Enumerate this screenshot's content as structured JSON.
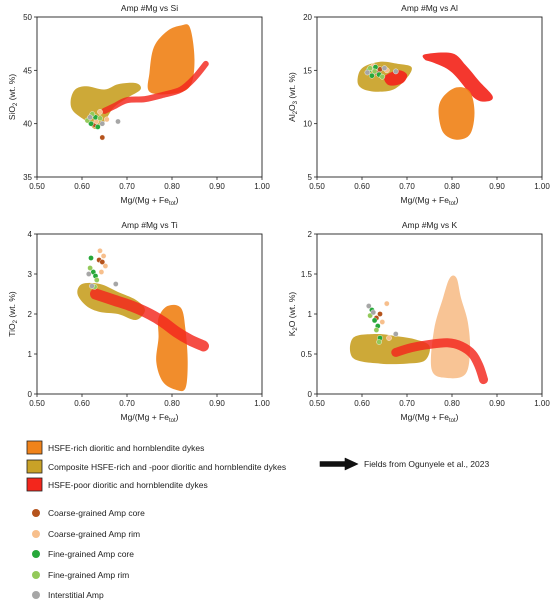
{
  "chart_data": [
    {
      "type": "scatter",
      "title": "Amp #Mg vs Si",
      "xlabel": "Mg/(Mg + Fe",
      "xlabel_sub": "tot",
      "xlabel_end": ")",
      "ylabel": "SiO",
      "ylabel_sub": "2",
      "ylabel_end": " (wt. %)",
      "xlim": [
        0.5,
        1.0
      ],
      "ylim": [
        35,
        50
      ],
      "xticks": [
        "0.50",
        "0.60",
        "0.70",
        "0.80",
        "0.90",
        "1.00"
      ],
      "yticks": [
        "35",
        "40",
        "45",
        "50"
      ],
      "fields": [
        {
          "name": "Composite",
          "color": "#c9a227",
          "points": [
            [
              0.58,
              41.2
            ],
            [
              0.575,
              42.2
            ],
            [
              0.585,
              43.2
            ],
            [
              0.61,
              43.5
            ],
            [
              0.65,
              43.2
            ],
            [
              0.68,
              43.7
            ],
            [
              0.72,
              43.8
            ],
            [
              0.73,
              43.2
            ],
            [
              0.7,
              42.4
            ],
            [
              0.67,
              41.5
            ],
            [
              0.65,
              40.2
            ],
            [
              0.63,
              39.5
            ],
            [
              0.61,
              40.2
            ]
          ]
        },
        {
          "name": "HSFE-rich",
          "color": "#f0831a",
          "points": [
            [
              0.75,
              43.0
            ],
            [
              0.75,
              44.8
            ],
            [
              0.76,
              47.2
            ],
            [
              0.79,
              48.7
            ],
            [
              0.82,
              49.2
            ],
            [
              0.84,
              49.0
            ],
            [
              0.85,
              46.0
            ],
            [
              0.84,
              43.5
            ],
            [
              0.8,
              42.8
            ]
          ]
        },
        {
          "name": "HSFE-poor",
          "color": "#f3261c",
          "band": true,
          "width": 6,
          "points": [
            [
              0.65,
              41.2
            ],
            [
              0.67,
              41.6
            ],
            [
              0.7,
              42.2
            ],
            [
              0.74,
              42.3
            ],
            [
              0.78,
              42.7
            ],
            [
              0.82,
              43.2
            ],
            [
              0.85,
              44.3
            ],
            [
              0.875,
              45.6
            ]
          ]
        }
      ],
      "points": [
        {
          "group": "Coarse-grained Amp core",
          "x": 0.645,
          "y": 38.7
        },
        {
          "group": "Coarse-grained Amp core",
          "x": 0.628,
          "y": 39.9
        },
        {
          "group": "Coarse-grained Amp rim",
          "x": 0.632,
          "y": 40.2
        },
        {
          "group": "Coarse-grained Amp rim",
          "x": 0.655,
          "y": 40.4
        },
        {
          "group": "Coarse-grained Amp rim",
          "x": 0.64,
          "y": 41.1
        },
        {
          "group": "Fine-grained Amp core",
          "x": 0.62,
          "y": 40.0
        },
        {
          "group": "Fine-grained Amp core",
          "x": 0.63,
          "y": 40.6
        },
        {
          "group": "Fine-grained Amp core",
          "x": 0.635,
          "y": 39.7
        },
        {
          "group": "Fine-grained Amp rim",
          "x": 0.612,
          "y": 40.3
        },
        {
          "group": "Fine-grained Amp rim",
          "x": 0.623,
          "y": 40.9
        },
        {
          "group": "Fine-grained Amp rim",
          "x": 0.64,
          "y": 40.5
        },
        {
          "group": "Interstitial Amp",
          "x": 0.618,
          "y": 40.6
        },
        {
          "group": "Interstitial Amp",
          "x": 0.645,
          "y": 40.0
        },
        {
          "group": "Interstitial Amp",
          "x": 0.68,
          "y": 40.2
        }
      ]
    },
    {
      "type": "scatter",
      "title": "Amp #Mg vs Al",
      "xlabel": "Mg/(Mg + Fe",
      "xlabel_sub": "tot",
      "xlabel_end": ")",
      "ylabel": "Al",
      "ylabel_sub": "2",
      "ylabel_mid": "O",
      "ylabel_sub2": "3",
      "ylabel_end": " (wt. %)",
      "xlim": [
        0.5,
        1.0
      ],
      "ylim": [
        5,
        20
      ],
      "xticks": [
        "0.50",
        "0.60",
        "0.70",
        "0.80",
        "0.90",
        "1.00"
      ],
      "yticks": [
        "5",
        "10",
        "15",
        "20"
      ],
      "fields": [
        {
          "name": "Composite",
          "color": "#c9a227",
          "points": [
            [
              0.59,
              14.0
            ],
            [
              0.6,
              15.2
            ],
            [
              0.64,
              15.8
            ],
            [
              0.68,
              15.6
            ],
            [
              0.71,
              15.3
            ],
            [
              0.7,
              14.3
            ],
            [
              0.67,
              13.2
            ],
            [
              0.63,
              13.0
            ],
            [
              0.6,
              13.3
            ]
          ]
        },
        {
          "name": "HSFE-poor",
          "color": "#f3261c",
          "points": [
            [
              0.74,
              16.5
            ],
            [
              0.8,
              16.6
            ],
            [
              0.83,
              15.5
            ],
            [
              0.86,
              14.0
            ],
            [
              0.89,
              12.6
            ],
            [
              0.88,
              12.1
            ],
            [
              0.85,
              12.4
            ],
            [
              0.8,
              14.8
            ],
            [
              0.76,
              15.7
            ],
            [
              0.74,
              16.0
            ]
          ]
        },
        {
          "name": "HSFE-poor",
          "color": "#f3261c",
          "points": [
            [
              0.65,
              14.4
            ],
            [
              0.68,
              15.0
            ],
            [
              0.7,
              14.6
            ],
            [
              0.69,
              13.8
            ],
            [
              0.66,
              13.6
            ]
          ]
        },
        {
          "name": "HSFE-rich",
          "color": "#f0831a",
          "points": [
            [
              0.78,
              12.5
            ],
            [
              0.81,
              13.4
            ],
            [
              0.84,
              13.0
            ],
            [
              0.85,
              11.0
            ],
            [
              0.84,
              9.0
            ],
            [
              0.81,
              8.5
            ],
            [
              0.78,
              9.2
            ],
            [
              0.77,
              11.2
            ]
          ]
        }
      ],
      "points": [
        {
          "group": "Coarse-grained Amp core",
          "x": 0.632,
          "y": 14.8
        },
        {
          "group": "Coarse-grained Amp core",
          "x": 0.64,
          "y": 15.1
        },
        {
          "group": "Coarse-grained Amp rim",
          "x": 0.625,
          "y": 15.4
        },
        {
          "group": "Coarse-grained Amp rim",
          "x": 0.655,
          "y": 15.0
        },
        {
          "group": "Fine-grained Amp core",
          "x": 0.615,
          "y": 15.0
        },
        {
          "group": "Fine-grained Amp core",
          "x": 0.622,
          "y": 14.5
        },
        {
          "group": "Fine-grained Amp core",
          "x": 0.638,
          "y": 14.6
        },
        {
          "group": "Fine-grained Amp core",
          "x": 0.63,
          "y": 15.3
        },
        {
          "group": "Fine-grained Amp rim",
          "x": 0.618,
          "y": 15.2
        },
        {
          "group": "Fine-grained Amp rim",
          "x": 0.645,
          "y": 14.4
        },
        {
          "group": "Fine-grained Amp rim",
          "x": 0.628,
          "y": 14.9
        },
        {
          "group": "Interstitial Amp",
          "x": 0.612,
          "y": 14.8
        },
        {
          "group": "Interstitial Amp",
          "x": 0.65,
          "y": 15.2
        },
        {
          "group": "Interstitial Amp",
          "x": 0.675,
          "y": 14.9
        }
      ]
    },
    {
      "type": "scatter",
      "title": "Amp #Mg vs Ti",
      "xlabel": "Mg/(Mg + Fe",
      "xlabel_sub": "tot",
      "xlabel_end": ")",
      "ylabel": "TiO",
      "ylabel_sub": "2",
      "ylabel_end": " (wt. %)",
      "xlim": [
        0.5,
        1.0
      ],
      "ylim": [
        0,
        4
      ],
      "xticks": [
        "0.50",
        "0.60",
        "0.70",
        "0.80",
        "0.90",
        "1.00"
      ],
      "yticks": [
        "0",
        "1",
        "2",
        "3",
        "4"
      ],
      "fields": [
        {
          "name": "Composite",
          "color": "#c9a227",
          "points": [
            [
              0.59,
              2.5
            ],
            [
              0.6,
              2.75
            ],
            [
              0.64,
              2.75
            ],
            [
              0.68,
              2.55
            ],
            [
              0.72,
              2.35
            ],
            [
              0.74,
              2.1
            ],
            [
              0.72,
              1.85
            ],
            [
              0.68,
              2.0
            ],
            [
              0.64,
              2.05
            ],
            [
              0.61,
              2.2
            ]
          ]
        },
        {
          "name": "HSFE-rich",
          "color": "#f0831a",
          "points": [
            [
              0.77,
              1.9
            ],
            [
              0.79,
              2.2
            ],
            [
              0.82,
              2.15
            ],
            [
              0.83,
              1.6
            ],
            [
              0.835,
              0.8
            ],
            [
              0.83,
              0.15
            ],
            [
              0.81,
              0.1
            ],
            [
              0.78,
              0.3
            ],
            [
              0.765,
              0.8
            ],
            [
              0.77,
              1.4
            ]
          ]
        },
        {
          "name": "HSFE-poor",
          "color": "#f3261c",
          "band": true,
          "width": 11,
          "points": [
            [
              0.63,
              2.5
            ],
            [
              0.67,
              2.35
            ],
            [
              0.71,
              2.2
            ],
            [
              0.75,
              2.0
            ],
            [
              0.78,
              1.8
            ],
            [
              0.81,
              1.55
            ],
            [
              0.84,
              1.35
            ],
            [
              0.87,
              1.2
            ]
          ]
        }
      ],
      "points": [
        {
          "group": "Coarse-grained Amp core",
          "x": 0.638,
          "y": 3.35
        },
        {
          "group": "Coarse-grained Amp core",
          "x": 0.645,
          "y": 3.3
        },
        {
          "group": "Coarse-grained Amp rim",
          "x": 0.64,
          "y": 3.58
        },
        {
          "group": "Coarse-grained Amp rim",
          "x": 0.648,
          "y": 3.45
        },
        {
          "group": "Coarse-grained Amp rim",
          "x": 0.652,
          "y": 3.2
        },
        {
          "group": "Coarse-grained Amp rim",
          "x": 0.643,
          "y": 3.05
        },
        {
          "group": "Fine-grained Amp core",
          "x": 0.62,
          "y": 3.4
        },
        {
          "group": "Fine-grained Amp core",
          "x": 0.625,
          "y": 3.05
        },
        {
          "group": "Fine-grained Amp core",
          "x": 0.63,
          "y": 2.95
        },
        {
          "group": "Fine-grained Amp rim",
          "x": 0.618,
          "y": 3.15
        },
        {
          "group": "Fine-grained Amp rim",
          "x": 0.633,
          "y": 2.85
        },
        {
          "group": "Fine-grained Amp rim",
          "x": 0.628,
          "y": 2.68
        },
        {
          "group": "Interstitial Amp",
          "x": 0.615,
          "y": 3.0
        },
        {
          "group": "Interstitial Amp",
          "x": 0.622,
          "y": 2.7
        },
        {
          "group": "Interstitial Amp",
          "x": 0.675,
          "y": 2.75
        }
      ]
    },
    {
      "type": "scatter",
      "title": "Amp #Mg vs K",
      "xlabel": "Mg/(Mg + Fe",
      "xlabel_sub": "tot",
      "xlabel_end": ")",
      "ylabel": "K",
      "ylabel_sub": "2",
      "ylabel_mid": "O",
      "ylabel_end": " (wt. %)",
      "xlim": [
        0.5,
        1.0
      ],
      "ylim": [
        0,
        2
      ],
      "xticks": [
        "0.50",
        "0.60",
        "0.70",
        "0.80",
        "0.90",
        "1.00"
      ],
      "yticks": [
        "0",
        "0.5",
        "1",
        "1.5",
        "2"
      ],
      "fields": [
        {
          "name": "Coarse-grained Amp rim",
          "color": "#f7bf8c",
          "points": [
            [
              0.755,
              0.3
            ],
            [
              0.76,
              0.8
            ],
            [
              0.78,
              1.2
            ],
            [
              0.795,
              1.45
            ],
            [
              0.81,
              1.45
            ],
            [
              0.82,
              1.2
            ],
            [
              0.835,
              0.9
            ],
            [
              0.84,
              0.55
            ],
            [
              0.83,
              0.25
            ],
            [
              0.79,
              0.2
            ]
          ]
        },
        {
          "name": "Composite",
          "color": "#c9a227",
          "points": [
            [
              0.58,
              0.45
            ],
            [
              0.58,
              0.7
            ],
            [
              0.63,
              0.75
            ],
            [
              0.68,
              0.72
            ],
            [
              0.72,
              0.68
            ],
            [
              0.75,
              0.6
            ],
            [
              0.74,
              0.42
            ],
            [
              0.7,
              0.38
            ],
            [
              0.64,
              0.38
            ]
          ]
        },
        {
          "name": "HSFE-poor",
          "color": "#f3261c",
          "band": true,
          "width": 9,
          "points": [
            [
              0.675,
              0.52
            ],
            [
              0.71,
              0.58
            ],
            [
              0.75,
              0.62
            ],
            [
              0.79,
              0.64
            ],
            [
              0.82,
              0.6
            ],
            [
              0.845,
              0.5
            ],
            [
              0.86,
              0.35
            ],
            [
              0.87,
              0.18
            ]
          ]
        }
      ],
      "points": [
        {
          "group": "Coarse-grained Amp core",
          "x": 0.632,
          "y": 0.95
        },
        {
          "group": "Coarse-grained Amp core",
          "x": 0.64,
          "y": 1.0
        },
        {
          "group": "Coarse-grained Amp rim",
          "x": 0.655,
          "y": 1.13
        },
        {
          "group": "Coarse-grained Amp rim",
          "x": 0.645,
          "y": 0.9
        },
        {
          "group": "Coarse-grained Amp rim",
          "x": 0.66,
          "y": 0.7
        },
        {
          "group": "Fine-grained Amp core",
          "x": 0.622,
          "y": 1.05
        },
        {
          "group": "Fine-grained Amp core",
          "x": 0.628,
          "y": 0.92
        },
        {
          "group": "Fine-grained Amp core",
          "x": 0.635,
          "y": 0.85
        },
        {
          "group": "Fine-grained Amp core",
          "x": 0.64,
          "y": 0.7
        },
        {
          "group": "Fine-grained Amp rim",
          "x": 0.618,
          "y": 0.98
        },
        {
          "group": "Fine-grained Amp rim",
          "x": 0.632,
          "y": 0.8
        },
        {
          "group": "Fine-grained Amp rim",
          "x": 0.638,
          "y": 0.65
        },
        {
          "group": "Interstitial Amp",
          "x": 0.615,
          "y": 1.1
        },
        {
          "group": "Interstitial Amp",
          "x": 0.625,
          "y": 1.02
        },
        {
          "group": "Interstitial Amp",
          "x": 0.675,
          "y": 0.75
        }
      ]
    }
  ],
  "legend": {
    "fields": [
      {
        "label": "HSFE-rich dioritic and hornblendite dykes",
        "color": "#f0831a"
      },
      {
        "label": "Composite HSFE-rich and -poor dioritic and hornblendite dykes",
        "color": "#c9a227"
      },
      {
        "label": "HSFE-poor dioritic and hornblendite dykes",
        "color": "#f3261c"
      }
    ],
    "source_note": "Fields from Ogunyele et al., 2023",
    "points": [
      {
        "label": "Coarse-grained Amp core",
        "color": "#b5531c"
      },
      {
        "label": "Coarse-grained Amp rim",
        "color": "#f7bf8c"
      },
      {
        "label": "Fine-grained Amp core",
        "color": "#27a83a"
      },
      {
        "label": "Fine-grained Amp rim",
        "color": "#93c95a"
      },
      {
        "label": "Interstitial Amp",
        "color": "#a6a6a6"
      }
    ]
  }
}
